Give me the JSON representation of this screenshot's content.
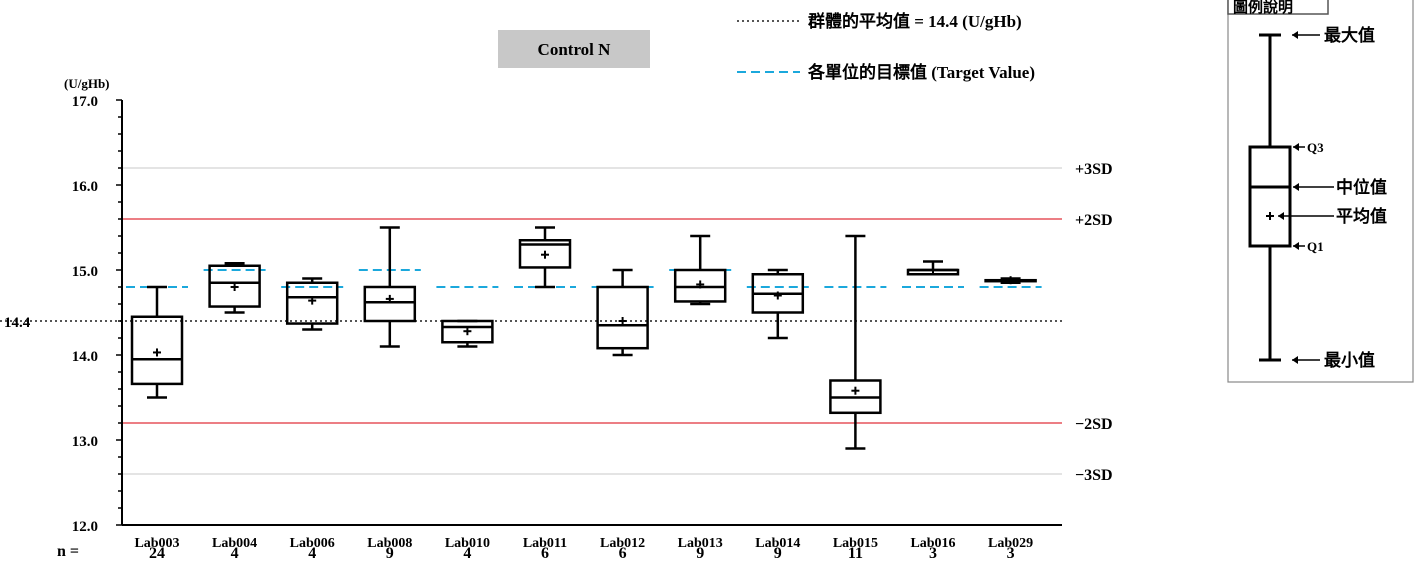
{
  "chart_data": {
    "type": "box",
    "title": "Control N",
    "ylabel": "(U/gHb)",
    "ylim": [
      12.0,
      17.0
    ],
    "yticks": [
      "12.0",
      "13.0",
      "14.0",
      "15.0",
      "16.0",
      "17.0"
    ],
    "group_mean": {
      "value": 14.4,
      "label": "14.4"
    },
    "legend": {
      "mean_text": "群體的平均值 = 14.4 (U/gHb)",
      "target_text": "各單位的目標值 (Target Value)"
    },
    "n_label": "n =",
    "sd_lines": [
      {
        "label": "+3SD",
        "value": 16.2
      },
      {
        "label": "+2SD",
        "value": 15.6
      },
      {
        "label": "−2SD",
        "value": 13.2
      },
      {
        "label": "−3SD",
        "value": 12.6
      }
    ],
    "categories": [
      "Lab003",
      "Lab004",
      "Lab006",
      "Lab008",
      "Lab010",
      "Lab011",
      "Lab012",
      "Lab013",
      "Lab014",
      "Lab015",
      "Lab016",
      "Lab029"
    ],
    "boxes": [
      {
        "n": "24",
        "min": 13.5,
        "q1": 13.66,
        "median": 13.95,
        "q3": 14.45,
        "max": 14.8,
        "mean": 14.03,
        "target": 14.8
      },
      {
        "n": "4",
        "min": 14.5,
        "q1": 14.57,
        "median": 14.85,
        "q3": 15.05,
        "max": 15.08,
        "mean": 14.8,
        "target": 15.0
      },
      {
        "n": "4",
        "min": 14.3,
        "q1": 14.37,
        "median": 14.68,
        "q3": 14.85,
        "max": 14.9,
        "mean": 14.64,
        "target": 14.8
      },
      {
        "n": "9",
        "min": 14.1,
        "q1": 14.4,
        "median": 14.62,
        "q3": 14.8,
        "max": 15.5,
        "mean": 14.66,
        "target": 15.0
      },
      {
        "n": "4",
        "min": 14.1,
        "q1": 14.15,
        "median": 14.33,
        "q3": 14.4,
        "max": 14.4,
        "mean": 14.28,
        "target": 14.8
      },
      {
        "n": "6",
        "min": 14.8,
        "q1": 15.03,
        "median": 15.3,
        "q3": 15.35,
        "max": 15.5,
        "mean": 15.18,
        "target": 14.8
      },
      {
        "n": "6",
        "min": 14.0,
        "q1": 14.08,
        "median": 14.35,
        "q3": 14.8,
        "max": 15.0,
        "mean": 14.4,
        "target": 14.8
      },
      {
        "n": "9",
        "min": 14.6,
        "q1": 14.63,
        "median": 14.8,
        "q3": 15.0,
        "max": 15.4,
        "mean": 14.83,
        "target": 15.0
      },
      {
        "n": "9",
        "min": 14.2,
        "q1": 14.5,
        "median": 14.72,
        "q3": 14.95,
        "max": 15.0,
        "mean": 14.7,
        "target": 14.8
      },
      {
        "n": "11",
        "min": 12.9,
        "q1": 13.32,
        "median": 13.5,
        "q3": 13.7,
        "max": 15.4,
        "mean": 13.58,
        "target": 14.8
      },
      {
        "n": "3",
        "min": 14.95,
        "q1": 14.95,
        "median": 15.0,
        "q3": 15.0,
        "max": 15.1,
        "mean": 15.0,
        "target": 14.8
      },
      {
        "n": "3",
        "min": 14.85,
        "q1": 14.87,
        "median": 14.88,
        "q3": 14.88,
        "max": 14.9,
        "mean": 14.88,
        "target": 14.8
      }
    ],
    "key": {
      "title": "圖例說明",
      "max_label": "最大值",
      "q3_label": "Q3",
      "median_label": "中位值",
      "mean_label": "平均值",
      "q1_label": "Q1",
      "min_label": "最小值"
    },
    "colors": {
      "box": "#000000",
      "target_line": "#1ba8dc",
      "sd2_line": "#e0303a",
      "sd3_line": "#c8c8c8",
      "mean_line": "#555555",
      "title_bg": "#c8c8c8"
    }
  }
}
